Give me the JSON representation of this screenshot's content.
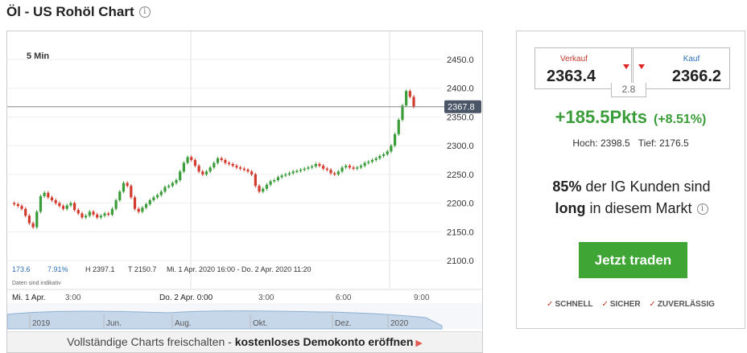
{
  "page": {
    "title": "Öl - US Rohöl Chart"
  },
  "chart": {
    "timeframe_label": "5 Min",
    "current_price_label": "2367.8",
    "stats": {
      "a": "173.6",
      "b": "7.91%",
      "high": "H 2397.1",
      "low": "T 2150.7",
      "range": "Mi. 1 Apr. 2020 16:00 - Do. 2 Apr. 2020 11:20"
    },
    "note": "Daten sind indikativ",
    "time_labels": [
      "Mi. 1 Apr.",
      "3:00",
      "Do. 2 Apr. 0:00",
      "3:00",
      "6:00",
      "9:00"
    ],
    "nav_labels": [
      "2019",
      "Jun.",
      "Aug.",
      "Okt.",
      "Dez.",
      "2020"
    ],
    "footer_text": "Vollständige Charts freischalten - ",
    "footer_link": "kostenloses Demokonto eröffnen"
  },
  "chart_data": {
    "type": "candlestick",
    "title": "5 Min",
    "y_ticks": [
      "2450.0",
      "2400.0",
      "2350.0",
      "2300.0",
      "2250.0",
      "2200.0",
      "2150.0",
      "2100.0"
    ],
    "ylim": [
      2100,
      2450
    ],
    "grid": true,
    "last_price": 2367.8,
    "close_series": [
      2200,
      2198,
      2195,
      2190,
      2178,
      2165,
      2158,
      2185,
      2212,
      2218,
      2210,
      2205,
      2200,
      2195,
      2190,
      2196,
      2200,
      2188,
      2182,
      2175,
      2178,
      2185,
      2180,
      2175,
      2178,
      2182,
      2180,
      2190,
      2205,
      2220,
      2235,
      2230,
      2210,
      2190,
      2185,
      2192,
      2198,
      2205,
      2210,
      2214,
      2220,
      2228,
      2230,
      2235,
      2240,
      2255,
      2270,
      2280,
      2275,
      2265,
      2255,
      2250,
      2255,
      2262,
      2270,
      2278,
      2275,
      2270,
      2268,
      2265,
      2262,
      2260,
      2258,
      2255,
      2250,
      2230,
      2220,
      2225,
      2232,
      2238,
      2240,
      2245,
      2248,
      2250,
      2252,
      2255,
      2256,
      2258,
      2260,
      2262,
      2264,
      2268,
      2265,
      2260,
      2258,
      2252,
      2250,
      2255,
      2262,
      2265,
      2262,
      2260,
      2262,
      2265,
      2270,
      2272,
      2275,
      2278,
      2282,
      2285,
      2290,
      2300,
      2320,
      2345,
      2370,
      2395,
      2385,
      2368
    ]
  },
  "panel": {
    "sell_label": "Verkauf",
    "sell_price": "2363.4",
    "buy_label": "Kauf",
    "buy_price": "2366.2",
    "spread": "2.8",
    "change_points": "+185.5Pkts",
    "change_percent": "(+8.51%)",
    "high": "Hoch: 2398.5",
    "low": "Tief: 2176.5",
    "sentiment_pct": "85%",
    "sentiment_text1": " der IG Kunden sind",
    "sentiment_bold": "long",
    "sentiment_text2": " in diesem Markt",
    "cta": "Jetzt traden",
    "badges": [
      "SCHNELL",
      "SICHER",
      "ZUVERLÄSSIG"
    ]
  },
  "colors": {
    "up": "#3a9d3a",
    "down": "#d23a2e",
    "accent": "#3fa535"
  }
}
